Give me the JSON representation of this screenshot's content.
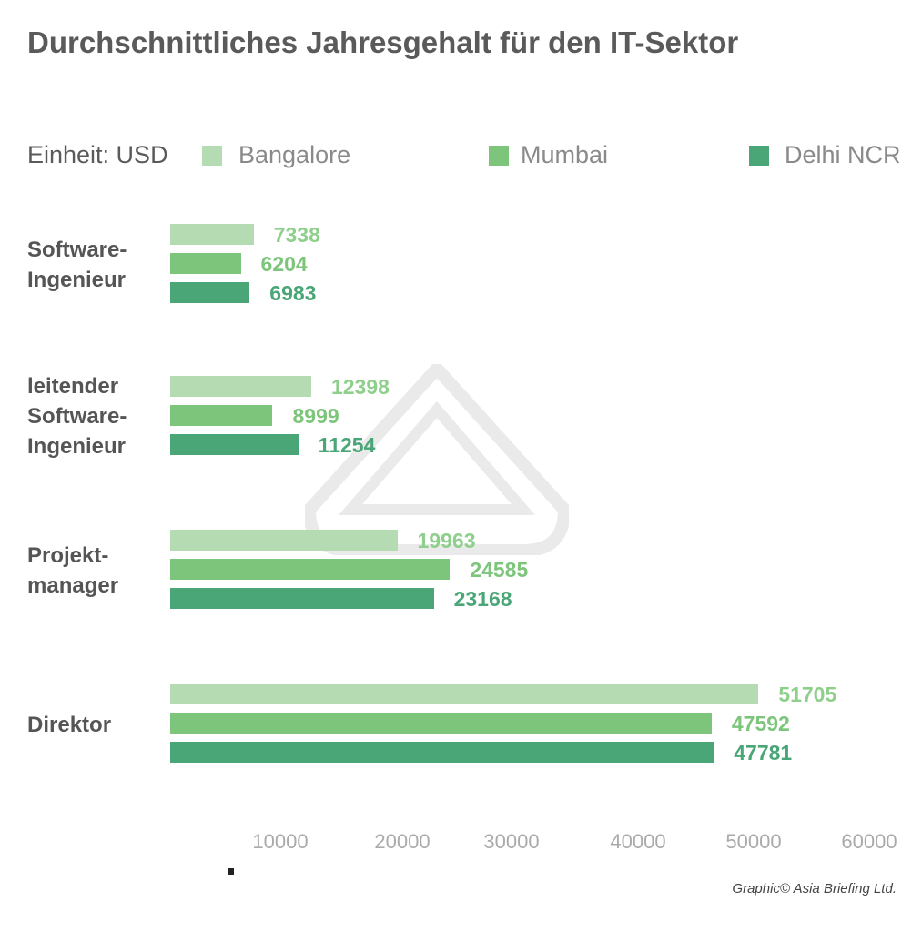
{
  "chart_data": {
    "type": "bar",
    "orientation": "horizontal",
    "title": "Durchschnittliches Jahresgehalt für den IT-Sektor",
    "unit_label": "Einheit: USD",
    "categories": [
      "Software-\nIngenieur",
      "leitender\nSoftware-\nIngenieur",
      "Projekt-\nmanager",
      "Direktor"
    ],
    "series": [
      {
        "name": "Bangalore",
        "color": "#b5dbb3",
        "values": [
          7338,
          12398,
          19963,
          51705
        ]
      },
      {
        "name": "Mumbai",
        "color": "#7cc57a",
        "values": [
          6204,
          8999,
          24585,
          47592
        ]
      },
      {
        "name": "Delhi NCR",
        "color": "#4aa677",
        "values": [
          6983,
          11254,
          23168,
          47781
        ]
      }
    ],
    "xlim": [
      0,
      60000
    ],
    "x_ticks": [
      "10000",
      "20000",
      "30000",
      "40000",
      "50000",
      "60000"
    ],
    "grid": false,
    "legend": "top",
    "data_labels": true
  },
  "credit": "Graphic© Asia Briefing Ltd."
}
